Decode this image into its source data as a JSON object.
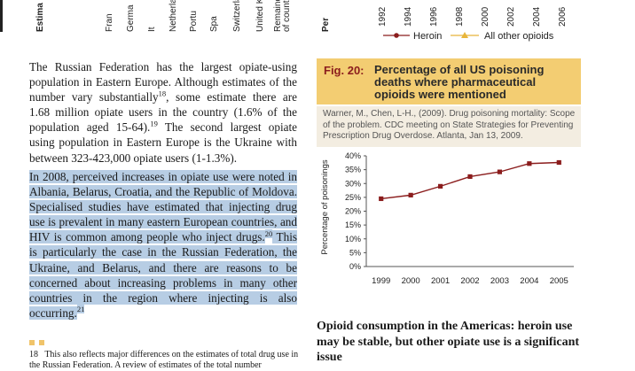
{
  "prev_figure": {
    "cropped_labels": [
      "Estima",
      "Fran",
      "Germa",
      "It",
      "Netherla",
      "Portu",
      "Spa",
      "Switzerla",
      "United Kingdo",
      "Remainde",
      "of countr",
      "Per"
    ],
    "year_labels": [
      "1992",
      "1994",
      "1996",
      "1998",
      "2000",
      "2002",
      "2004",
      "2006"
    ],
    "legend": {
      "series1": "Heroin",
      "series2": "All other opioids"
    },
    "colors": {
      "heroin": "#8b1d1d",
      "other": "#e8b53a"
    }
  },
  "body": {
    "para1": {
      "before_sup": "The Russian Federation has the largest opiate-using population in Eastern Europe. Although estimates of the number vary substantially",
      "sup1": "18",
      "middle": ", some estimate there are 1.68 million opiate users in the country (1.6% of the population aged 15-64).",
      "sup2": "19",
      "after": " The second largest opiate using population in Eastern Europe is the Ukraine with between 323-423,000 opiate users (1-1.3%)."
    },
    "para2": {
      "text1": "In 2008, perceived increases in opiate use were noted in Albania, Belarus, Croatia, and the Republic of Moldova. Specialised studies have estimated that injecting drug use is prevalent in many eastern European countries, and HIV is common among people who inject drugs.",
      "sup1": "20",
      "text2": " This is particularly the case in the Russian Federation, the Ukraine, and Belarus, and there are reasons to be concerned about increasing problems in many other countries in the region where injecting is also occurring.",
      "sup2": "21"
    }
  },
  "figure": {
    "number": "Fig. 20:",
    "title": "Percentage of all US poisoning deaths where pharmaceutical opioids were mentioned",
    "source": "Warner, M., Chen, L-H., (2009). Drug poisoning mortality: Scope of the problem. CDC meeting on State Strategies for Preventing Prescription Drug Overdose. Atlanta, Jan 13, 2009.",
    "title_color": "#8b1d1d",
    "box_color": "#f3cd72"
  },
  "chart_data": {
    "type": "line",
    "title": "",
    "xlabel": "",
    "ylabel": "Percentage of poisonings",
    "x": [
      "1999",
      "2000",
      "2001",
      "2002",
      "2003",
      "2004",
      "2005"
    ],
    "values": [
      24.5,
      25.8,
      29,
      32.5,
      34.2,
      37.2,
      37.6
    ],
    "yticks": [
      "0%",
      "5%",
      "10%",
      "15%",
      "20%",
      "25%",
      "30%",
      "35%",
      "40%"
    ],
    "ylim": [
      0,
      40
    ],
    "grid": false,
    "line_color": "#8b1d1d"
  },
  "section": {
    "heading": "Opioid consumption in the Americas: heroin use may be stable, but other opiate use is a significant issue"
  },
  "footnote": {
    "number": "18",
    "text": "This also reflects major differences on the estimates of total drug use in the Russian Federation. A review of estimates of the total number"
  }
}
